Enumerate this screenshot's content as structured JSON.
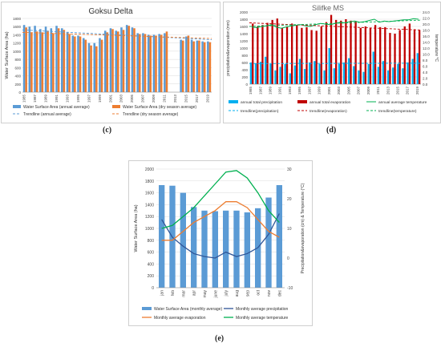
{
  "panel_labels": [
    "(c)",
    "(d)",
    "(e)"
  ],
  "colors": {
    "blue": "#5b9bd5",
    "orange": "#ed7d31",
    "red": "#c00000",
    "green": "#00b050",
    "darkblue": "#2f5597",
    "cyan": "#00b0f0",
    "grid": "#d9d9d9"
  },
  "chart_data": [
    {
      "id": "c",
      "type": "bar",
      "title": "Goksu Delta",
      "ylabel": "Water Surface Area (ha)",
      "ylim": [
        0,
        1800
      ],
      "yticks": [
        0,
        200,
        400,
        600,
        800,
        1000,
        1200,
        1400,
        1600,
        1800
      ],
      "years": [
        1985,
        1986,
        1987,
        1988,
        1989,
        1990,
        1991,
        1992,
        1993,
        1994,
        1995,
        1996,
        1997,
        1998,
        1999,
        2000,
        2001,
        2002,
        2003,
        2004,
        2005,
        2006,
        2007,
        2008,
        2009,
        2010,
        2011,
        2012,
        2013,
        2014,
        2015,
        2016,
        2017,
        2018,
        2019
      ],
      "xticklabels": [
        "1985",
        "1987",
        "1989",
        "1991",
        "1993",
        "1995",
        "1997",
        "1999",
        "2001",
        "2003",
        "2005",
        "2007",
        "2009",
        "2011",
        "2013",
        "2015",
        "2017",
        "2019"
      ],
      "series": [
        {
          "name": "Water Surface Area (annual average)",
          "color": "#5b9bd5",
          "values": [
            1640,
            1600,
            1620,
            1540,
            1600,
            1560,
            1620,
            1560,
            1460,
            1380,
            1380,
            1320,
            1200,
            1200,
            1320,
            1500,
            1560,
            1500,
            1580,
            1640,
            1580,
            1440,
            1440,
            1400,
            1400,
            1420,
            1440,
            null,
            null,
            1280,
            1360,
            1280,
            1260,
            1240,
            1240
          ]
        },
        {
          "name": "Water Surface Area (dry season average)",
          "color": "#ed7d31",
          "values": [
            1580,
            1460,
            1480,
            1460,
            1500,
            1440,
            1560,
            1520,
            1420,
            1360,
            1360,
            1280,
            1140,
            1120,
            1280,
            1460,
            1540,
            1480,
            1520,
            1620,
            1560,
            1420,
            1420,
            1380,
            1380,
            1400,
            1480,
            null,
            null,
            1260,
            1380,
            1240,
            1260,
            1220,
            1220
          ]
        }
      ],
      "trend": [
        {
          "name": "Trendline (annual average)",
          "color": "#5b9bd5",
          "start": 1520,
          "end": 1280
        },
        {
          "name": "Trendline (dry season average)",
          "color": "#ed7d31",
          "start": 1460,
          "end": 1310
        }
      ],
      "legend": [
        "Water Surface Area (annual average)",
        "Water Surface Area (dry season average)",
        "Trendline (annual average)",
        "Trendline (dry season average)"
      ]
    },
    {
      "id": "d",
      "type": "bar",
      "title": "Silifke MS",
      "ylabel_left": "precipitation&evaporation (mm)",
      "ylabel_right": "temperature °C",
      "ylim_left": [
        0,
        2000
      ],
      "yticks_left": [
        0,
        200,
        400,
        600,
        800,
        1000,
        1200,
        1400,
        1600,
        1800,
        2000
      ],
      "ylim_right": [
        0,
        24
      ],
      "yticks_right": [
        "0.0",
        "2.0",
        "4.0",
        "6.0",
        "8.0",
        "10.0",
        "12.0",
        "14.0",
        "16.0",
        "18.0",
        "20.0",
        "22.0",
        "24.0"
      ],
      "years": [
        1985,
        1986,
        1987,
        1988,
        1989,
        1990,
        1991,
        1992,
        1993,
        1994,
        1995,
        1996,
        1997,
        1998,
        1999,
        2000,
        2001,
        2002,
        2003,
        2004,
        2005,
        2006,
        2007,
        2008,
        2009,
        2010,
        2011,
        2012,
        2013,
        2014,
        2015,
        2016,
        2017,
        2018,
        2019
      ],
      "xticklabels": [
        "1985",
        "1987",
        "1989",
        "1991",
        "1993",
        "1995",
        "1997",
        "1999",
        "2001",
        "2003",
        "2005",
        "2007",
        "2009",
        "2011",
        "2013",
        "2015",
        "2017",
        "2019"
      ],
      "series": [
        {
          "name": "annual total precipitation",
          "color": "#00b0f0",
          "values": [
            600,
            580,
            620,
            760,
            560,
            380,
            480,
            560,
            300,
            520,
            700,
            420,
            600,
            640,
            560,
            380,
            1000,
            440,
            560,
            600,
            720,
            500,
            380,
            340,
            560,
            900,
            480,
            640,
            380,
            460,
            560,
            440,
            600,
            700,
            860
          ]
        },
        {
          "name": "annual total evaporation",
          "color": "#c00000",
          "values": [
            1680,
            1600,
            1640,
            1700,
            1780,
            1820,
            1560,
            1600,
            1680,
            1640,
            1560,
            1580,
            1500,
            1480,
            1600,
            1720,
            1920,
            1780,
            1760,
            1800,
            1760,
            1740,
            1560,
            1600,
            1560,
            1640,
            1580,
            1580,
            1420,
            1400,
            1500,
            1600,
            1680,
            1520,
            1500
          ]
        },
        {
          "name": "annual average temperature",
          "color": "#00b050",
          "axis": "right",
          "values": [
            19.0,
            18.8,
            19.2,
            19.4,
            19.8,
            19.0,
            18.6,
            19.0,
            19.4,
            19.6,
            19.8,
            19.4,
            19.2,
            19.8,
            20.2,
            20.0,
            19.8,
            20.2,
            20.6,
            20.4,
            20.8,
            21.0,
            20.6,
            20.8,
            21.2,
            21.6,
            20.6,
            21.0,
            20.8,
            21.0,
            21.2,
            21.4,
            21.4,
            21.8,
            21.6
          ]
        }
      ],
      "trend": [
        {
          "name": "trendline(precipitation)",
          "color": "#00b0f0",
          "start": 570,
          "end": 580
        },
        {
          "name": "trendline(evaporation)",
          "color": "#c00000",
          "start": 1700,
          "end": 1500
        },
        {
          "name": "trendline(temperature)",
          "color": "#00b050",
          "axis": "right",
          "start": 19.2,
          "end": 21.3
        }
      ],
      "legend": [
        "annual total precipitation",
        "annual total evaporation",
        "annual average temperature",
        "trendline(precipitation)",
        "trendline(evaporation)",
        "trendline(temperature)"
      ]
    },
    {
      "id": "e",
      "type": "bar",
      "ylabel_left": "Water Surface Area (ha)",
      "ylabel_right": "Precipitation&evaporation (cm) & Temperature (°C)",
      "ylim_left": [
        0,
        2000
      ],
      "yticks_left": [
        0,
        200,
        400,
        600,
        800,
        1000,
        1200,
        1400,
        1600,
        1800,
        2000
      ],
      "ylim_right": [
        -10,
        30
      ],
      "yticks_right": [
        "-10",
        "0",
        "10",
        "20",
        "30"
      ],
      "categories": [
        "jan",
        "feb",
        "mar",
        "apr",
        "may",
        "june",
        "july",
        "aug",
        "sep",
        "oct",
        "nov",
        "dec"
      ],
      "series": [
        {
          "name": "Water Surface Area (monthly average)",
          "color": "#5b9bd5",
          "values": [
            1730,
            1720,
            1600,
            1360,
            1300,
            1290,
            1300,
            1300,
            1270,
            1340,
            1520,
            1730
          ]
        },
        {
          "name": "Monthly average precipitation",
          "color": "#2f5597",
          "axis": "right",
          "values": [
            13,
            7,
            4,
            1.5,
            0.5,
            0,
            2,
            0.5,
            1.5,
            3.5,
            8,
            15
          ]
        },
        {
          "name": "Monthly average evaporation",
          "color": "#ed7d31",
          "axis": "right",
          "values": [
            6,
            6,
            9,
            12,
            14,
            16,
            19,
            19,
            17,
            13,
            9,
            7
          ]
        },
        {
          "name": "Monthly average temperature",
          "color": "#00b050",
          "axis": "right",
          "values": [
            10,
            11,
            14,
            17,
            21,
            25,
            29,
            29.5,
            27,
            22,
            16,
            12
          ]
        }
      ],
      "legend": [
        "Water Surface Area (monthly average)",
        "Monthly average precipitation",
        "Monthly average evaporation",
        "Monthly average temperature"
      ]
    }
  ]
}
